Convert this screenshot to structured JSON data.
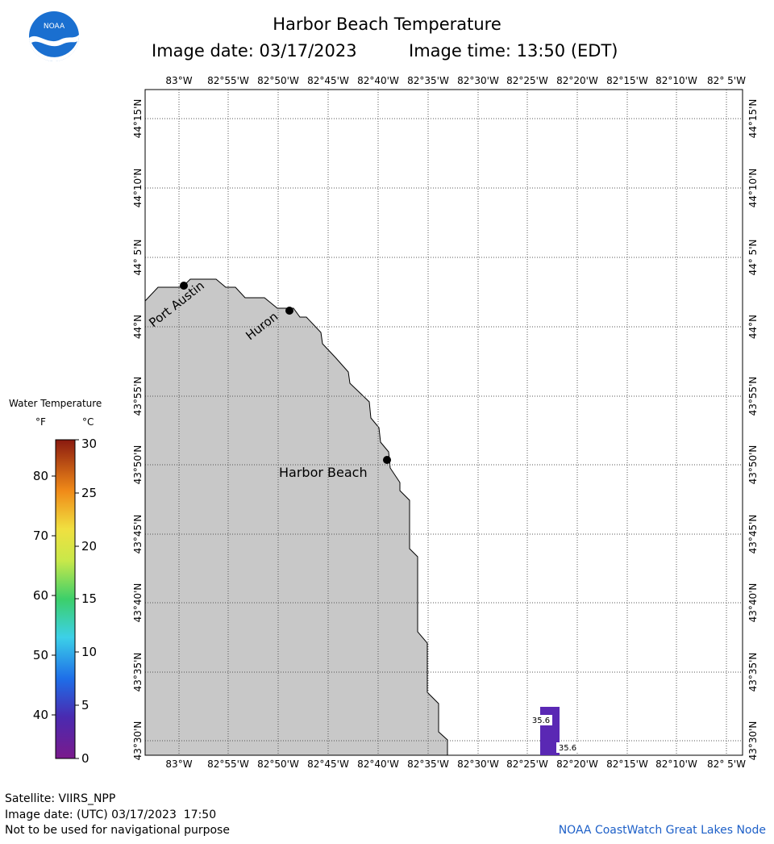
{
  "title": "Harbor Beach Temperature",
  "image_date_label": "Image date: 03/17/2023",
  "image_time_label": "Image time: 13:50 (EDT)",
  "logo_text": "NOAA",
  "lon_labels": [
    "83°W",
    "82°55'W",
    "82°50'W",
    "82°45'W",
    "82°40'W",
    "82°35'W",
    "82°30'W",
    "82°25'W",
    "82°20'W",
    "82°15'W",
    "82°10'W",
    "82° 5'W"
  ],
  "lat_labels": [
    "44°15'N",
    "44°10'N",
    "44° 5'N",
    "44°N",
    "43°55'N",
    "43°50'N",
    "43°45'N",
    "43°40'N",
    "43°35'N",
    "43°30'N"
  ],
  "places": [
    {
      "name": "Port Austin"
    },
    {
      "name": "Huron"
    },
    {
      "name": "Harbor Beach"
    }
  ],
  "temperature_readings": [
    {
      "label": "35.6"
    },
    {
      "label": "35.6"
    }
  ],
  "legend": {
    "title": "Water Temperature",
    "unit_f": "°F",
    "unit_c": "°C",
    "f_ticks": [
      "40",
      "50",
      "60",
      "70",
      "80"
    ],
    "c_ticks": [
      "0",
      "5",
      "10",
      "15",
      "20",
      "25",
      "30"
    ]
  },
  "colors": {
    "land": "#c8c8c8",
    "water": "#ffffff",
    "reading_pixel": "#5a28b4",
    "credit": "#1e60c8"
  },
  "footer": {
    "satellite": "Satellite: VIIRS_NPP",
    "image_date_utc": "Image date: (UTC) 03/17/2023  17:50",
    "disclaimer": "Not to be used for navigational purpose",
    "credit": "NOAA CoastWatch Great Lakes Node"
  }
}
